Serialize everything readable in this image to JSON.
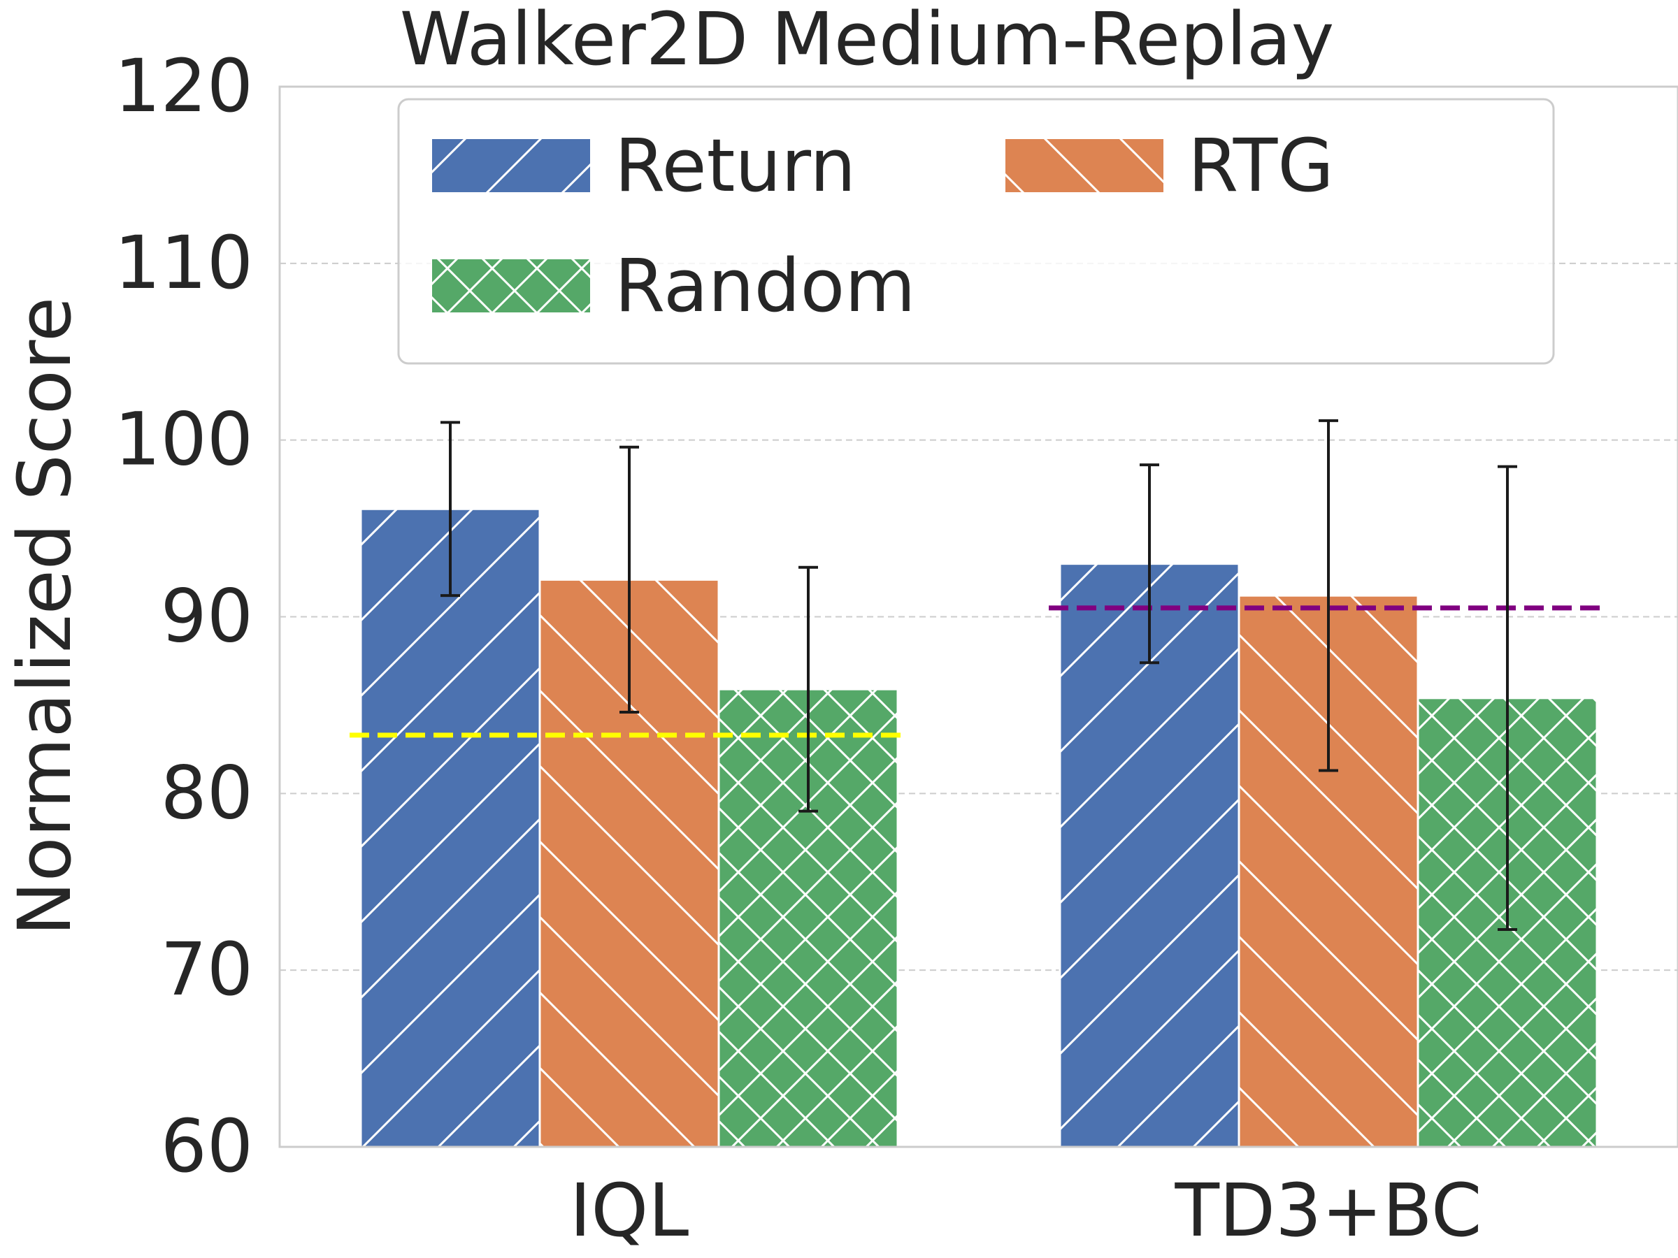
{
  "chart_data": {
    "type": "bar",
    "title": "Walker2D Medium-Replay",
    "xlabel": "",
    "ylabel": "Normalized Score",
    "ylim": [
      60,
      120
    ],
    "yticks": [
      "60",
      "70",
      "80",
      "90",
      "100",
      "110",
      "120"
    ],
    "categories": [
      "IQL",
      "TD3+BC"
    ],
    "grid": true,
    "legend_position": "top",
    "series": [
      {
        "name": "Return",
        "values": [
          96.1,
          93.0
        ],
        "errors": [
          4.9,
          5.6
        ],
        "color": "#4c72b0",
        "hatch": "/"
      },
      {
        "name": "RTG",
        "values": [
          92.1,
          91.2
        ],
        "errors": [
          7.5,
          9.9
        ],
        "color": "#dd8452",
        "hatch": "\\"
      },
      {
        "name": "Random",
        "values": [
          85.9,
          85.4
        ],
        "errors": [
          6.9,
          13.1
        ],
        "color": "#55a868",
        "hatch": "x"
      }
    ],
    "reference_lines": [
      {
        "category": "IQL",
        "value": 83.3,
        "color": "#ffff00"
      },
      {
        "category": "TD3+BC",
        "value": 90.5,
        "color": "#800080"
      }
    ]
  }
}
